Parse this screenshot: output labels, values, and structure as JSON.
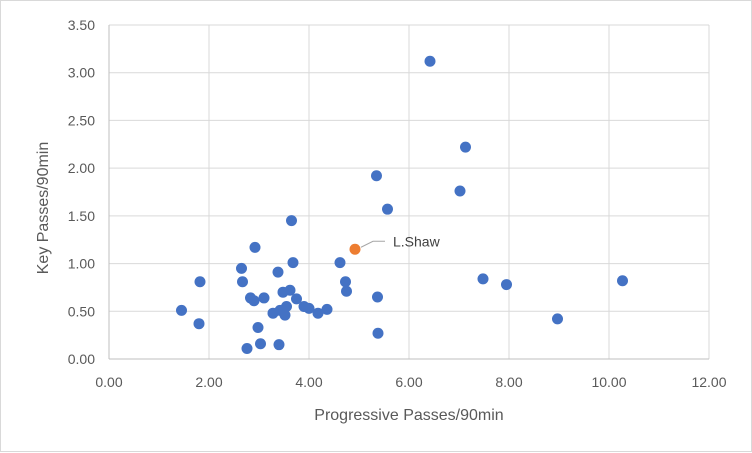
{
  "chart_data": {
    "type": "scatter",
    "title": "",
    "xlabel": "Progressive Passes/90min",
    "ylabel": "Key Passes/90min",
    "xlim": [
      0,
      12
    ],
    "ylim": [
      0,
      3.5
    ],
    "x_ticks": [
      "0.00",
      "2.00",
      "4.00",
      "6.00",
      "8.00",
      "10.00",
      "12.00"
    ],
    "y_ticks": [
      "0.00",
      "0.50",
      "1.00",
      "1.50",
      "2.00",
      "2.50",
      "3.00",
      "3.50"
    ],
    "grid": true,
    "legend": "none",
    "colors": {
      "series": "#4472c4",
      "highlight": "#ed7d31",
      "grid": "#d9d9d9",
      "axis": "#bfbfbf"
    },
    "series": [
      {
        "points": [
          [
            1.45,
            0.51
          ],
          [
            1.8,
            0.37
          ],
          [
            1.82,
            0.81
          ],
          [
            2.65,
            0.95
          ],
          [
            2.67,
            0.81
          ],
          [
            2.76,
            0.11
          ],
          [
            2.83,
            0.64
          ],
          [
            2.9,
            0.61
          ],
          [
            2.92,
            1.17
          ],
          [
            2.98,
            0.33
          ],
          [
            3.03,
            0.16
          ],
          [
            3.1,
            0.64
          ],
          [
            3.28,
            0.48
          ],
          [
            3.38,
            0.91
          ],
          [
            3.4,
            0.15
          ],
          [
            3.42,
            0.51
          ],
          [
            3.48,
            0.7
          ],
          [
            3.52,
            0.46
          ],
          [
            3.55,
            0.55
          ],
          [
            3.62,
            0.72
          ],
          [
            3.65,
            1.45
          ],
          [
            3.68,
            1.01
          ],
          [
            3.75,
            0.63
          ],
          [
            3.9,
            0.55
          ],
          [
            4.0,
            0.53
          ],
          [
            4.18,
            0.48
          ],
          [
            4.36,
            0.52
          ],
          [
            4.62,
            1.01
          ],
          [
            4.73,
            0.81
          ],
          [
            4.75,
            0.71
          ],
          [
            5.35,
            1.92
          ],
          [
            5.37,
            0.65
          ],
          [
            5.38,
            0.27
          ],
          [
            5.57,
            1.57
          ],
          [
            6.42,
            3.12
          ],
          [
            7.02,
            1.76
          ],
          [
            7.13,
            2.22
          ],
          [
            7.48,
            0.84
          ],
          [
            7.95,
            0.78
          ],
          [
            8.97,
            0.42
          ],
          [
            10.27,
            0.82
          ]
        ]
      },
      {
        "points": [
          [
            4.92,
            1.15
          ]
        ]
      }
    ],
    "annotations": [
      {
        "text": "L.Shaw",
        "x": 4.92,
        "y": 1.15
      }
    ]
  }
}
